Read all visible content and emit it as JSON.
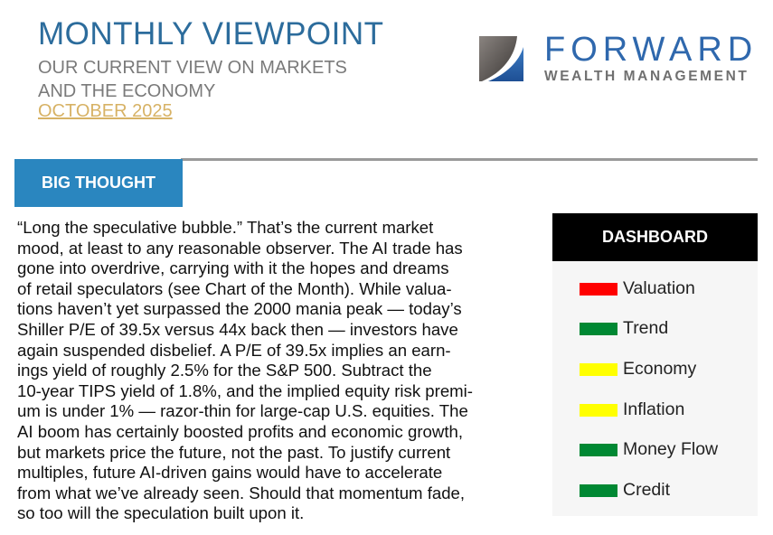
{
  "header": {
    "title": "MONTHLY VIEWPOINT",
    "subtitle_lines": [
      "OUR CURRENT VIEW ON MARKETS",
      "AND THE ECONOMY"
    ],
    "date": "OCTOBER 2025"
  },
  "logo": {
    "name": "FORWARD",
    "tagline": "WEALTH MANAGEMENT"
  },
  "section": {
    "label": "BIG THOUGHT"
  },
  "body_lines": [
    "“Long the speculative bubble.” That’s the current market",
    "mood, at least to any reasonable observer. The AI trade has",
    "gone into overdrive, carrying with it the hopes and dreams",
    "of retail speculators (see Chart of the Month). While valua-",
    "tions haven’t yet surpassed the 2000 mania peak — today’s",
    "Shiller P/E of 39.5x versus 44x back then — investors have",
    "again suspended disbelief. A P/E of 39.5x implies an earn-",
    "ings yield of roughly 2.5% for the S&P 500. Subtract the",
    "10-year TIPS yield of 1.8%, and the implied equity risk premi-",
    "um is under 1% — razor-thin for large-cap U.S. equities. The",
    "AI boom has certainly boosted profits and economic growth,",
    "but markets price the future, not the past. To justify current",
    "multiples, future AI-driven gains would have to accelerate",
    "from what we’ve already seen. Should that momentum fade,",
    "so too will the speculation built upon it."
  ],
  "dashboard": {
    "title": "DASHBOARD",
    "items": [
      {
        "label": "Valuation",
        "color": "#ff0000"
      },
      {
        "label": "Trend",
        "color": "#008833"
      },
      {
        "label": "Economy",
        "color": "#ffff00"
      },
      {
        "label": "Inflation",
        "color": "#ffff00"
      },
      {
        "label": "Money Flow",
        "color": "#008833"
      },
      {
        "label": "Credit",
        "color": "#008833"
      }
    ]
  }
}
